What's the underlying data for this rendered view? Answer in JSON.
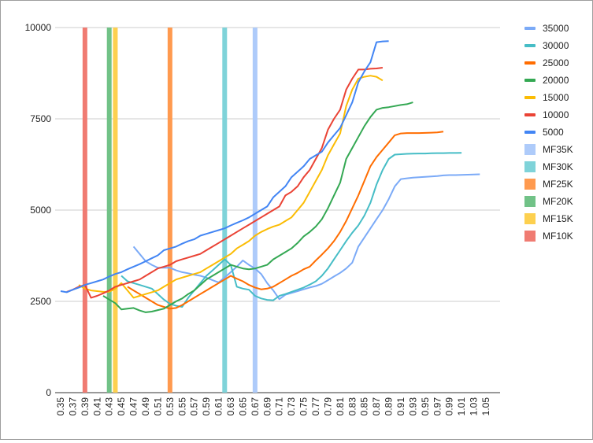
{
  "chart_data": {
    "type": "line",
    "title": "",
    "xlabel": "",
    "ylabel": "",
    "ylim": [
      0,
      10000
    ],
    "yticks": [
      0,
      2500,
      5000,
      7500,
      10000
    ],
    "x_start": 0.35,
    "x_step": 0.01,
    "x_count": 71,
    "xtick_labels": [
      "0.35",
      "0.37",
      "0.39",
      "0.41",
      "0.43",
      "0.45",
      "0.47",
      "0.49",
      "0.51",
      "0.53",
      "0.55",
      "0.57",
      "0.59",
      "0.61",
      "0.63",
      "0.65",
      "0.67",
      "0.69",
      "0.71",
      "0.73",
      "0.75",
      "0.77",
      "0.79",
      "0.81",
      "0.83",
      "0.85",
      "0.87",
      "0.89",
      "0.91",
      "0.93",
      "0.95",
      "0.97",
      "0.99",
      "1.01",
      "1.03",
      "1.05"
    ],
    "grid": true,
    "legend_position": "right",
    "series": [
      {
        "name": "35000",
        "color": "#7baaf7",
        "start": 0.47,
        "values": [
          4000,
          3800,
          3600,
          3500,
          3420,
          3420,
          3420,
          3350,
          3300,
          3270,
          3230,
          3200,
          3150,
          3080,
          3020,
          3150,
          3300,
          3450,
          3620,
          3500,
          3400,
          3250,
          3000,
          2800,
          2560,
          2680,
          2730,
          2780,
          2830,
          2880,
          2920,
          2980,
          3080,
          3180,
          3280,
          3400,
          3560,
          4000,
          4250,
          4500,
          4750,
          5000,
          5300,
          5650,
          5850,
          5870,
          5890,
          5900,
          5910,
          5920,
          5930,
          5950,
          5960,
          5960,
          5965,
          5970,
          5975,
          5980
        ]
      },
      {
        "name": "30000",
        "color": "#46bdc6",
        "start": 0.45,
        "values": [
          3200,
          3050,
          3000,
          2950,
          2900,
          2850,
          2700,
          2550,
          2430,
          2380,
          2350,
          2600,
          2800,
          3000,
          3200,
          3350,
          3500,
          3650,
          3500,
          2900,
          2850,
          2820,
          2650,
          2580,
          2540,
          2530,
          2650,
          2700,
          2760,
          2820,
          2880,
          2960,
          3050,
          3200,
          3400,
          3650,
          3900,
          4150,
          4380,
          4580,
          4850,
          5200,
          5700,
          6100,
          6400,
          6520,
          6530,
          6540,
          6545,
          6550,
          6550,
          6555,
          6560,
          6560,
          6565,
          6565,
          6570
        ]
      },
      {
        "name": "25000",
        "color": "#ff6d01",
        "start": 0.46,
        "values": [
          2900,
          2800,
          2700,
          2600,
          2500,
          2400,
          2350,
          2300,
          2320,
          2400,
          2500,
          2600,
          2700,
          2800,
          2900,
          3000,
          3100,
          3200,
          3120,
          3050,
          2950,
          2880,
          2830,
          2850,
          2900,
          3000,
          3100,
          3200,
          3280,
          3380,
          3450,
          3620,
          3780,
          3950,
          4150,
          4400,
          4700,
          5050,
          5400,
          5800,
          6200,
          6450,
          6650,
          6850,
          7050,
          7100,
          7110,
          7110,
          7110,
          7115,
          7120,
          7130,
          7150
        ]
      },
      {
        "name": "20000",
        "color": "#34a853",
        "start": 0.42,
        "values": [
          2650,
          2550,
          2450,
          2280,
          2300,
          2320,
          2250,
          2200,
          2220,
          2260,
          2300,
          2400,
          2500,
          2580,
          2700,
          2800,
          2950,
          3100,
          3200,
          3300,
          3400,
          3500,
          3450,
          3400,
          3380,
          3400,
          3450,
          3500,
          3650,
          3750,
          3850,
          3950,
          4100,
          4280,
          4400,
          4550,
          4750,
          5050,
          5400,
          5750,
          6400,
          6700,
          7000,
          7300,
          7550,
          7750,
          7800,
          7820,
          7850,
          7880,
          7900,
          7950
        ]
      },
      {
        "name": "15000",
        "color": "#fbbc04",
        "start": 0.38,
        "values": [
          2950,
          2850,
          2800,
          2780,
          2760,
          2760,
          2850,
          3000,
          2800,
          2600,
          2650,
          2700,
          2750,
          2800,
          2900,
          3000,
          3100,
          3150,
          3200,
          3250,
          3300,
          3400,
          3500,
          3600,
          3700,
          3800,
          3950,
          4050,
          4150,
          4300,
          4400,
          4480,
          4550,
          4600,
          4700,
          4800,
          5000,
          5200,
          5500,
          5800,
          6100,
          6500,
          6800,
          7100,
          7850,
          8300,
          8600,
          8650,
          8680,
          8650,
          8550
        ]
      },
      {
        "name": "10000",
        "color": "#ea4335",
        "start": 0.36,
        "values": [
          2760,
          2820,
          2900,
          2950,
          2600,
          2650,
          2720,
          2800,
          2900,
          2950,
          3000,
          3050,
          3100,
          3200,
          3300,
          3400,
          3450,
          3500,
          3600,
          3650,
          3700,
          3750,
          3800,
          3900,
          4000,
          4100,
          4200,
          4300,
          4400,
          4500,
          4600,
          4700,
          4800,
          4900,
          5000,
          5100,
          5400,
          5500,
          5650,
          5900,
          6100,
          6400,
          6700,
          7200,
          7500,
          7750,
          8300,
          8600,
          8850,
          8850,
          8870,
          8880,
          8900
        ]
      },
      {
        "name": "5000",
        "color": "#4285f4",
        "start": 0.35,
        "values": [
          2780,
          2750,
          2820,
          2880,
          2950,
          3000,
          3050,
          3100,
          3180,
          3250,
          3300,
          3380,
          3450,
          3520,
          3600,
          3680,
          3760,
          3900,
          3950,
          4000,
          4080,
          4150,
          4200,
          4300,
          4350,
          4400,
          4450,
          4500,
          4580,
          4650,
          4720,
          4800,
          4900,
          5000,
          5100,
          5350,
          5500,
          5650,
          5900,
          6050,
          6200,
          6400,
          6500,
          6600,
          6850,
          7050,
          7250,
          7600,
          7950,
          8500,
          8800,
          9050,
          9600,
          9620,
          9630
        ]
      }
    ],
    "markers": [
      {
        "name": "MF35K",
        "color": "#aecbfa",
        "x": 0.67
      },
      {
        "name": "MF30K",
        "color": "#7fd3d9",
        "x": 0.62
      },
      {
        "name": "MF25K",
        "color": "#ff9a4f",
        "x": 0.53
      },
      {
        "name": "MF20K",
        "color": "#71c287",
        "x": 0.43
      },
      {
        "name": "MF15K",
        "color": "#fdd04f",
        "x": 0.44
      },
      {
        "name": "MF10K",
        "color": "#f07b72",
        "x": 0.39
      }
    ],
    "legend": [
      {
        "label": "35000",
        "kind": "line",
        "color": "#7baaf7"
      },
      {
        "label": "30000",
        "kind": "line",
        "color": "#46bdc6"
      },
      {
        "label": "25000",
        "kind": "line",
        "color": "#ff6d01"
      },
      {
        "label": "20000",
        "kind": "line",
        "color": "#34a853"
      },
      {
        "label": "15000",
        "kind": "line",
        "color": "#fbbc04"
      },
      {
        "label": "10000",
        "kind": "line",
        "color": "#ea4335"
      },
      {
        "label": "5000",
        "kind": "line",
        "color": "#4285f4"
      },
      {
        "label": "MF35K",
        "kind": "box",
        "color": "#aecbfa"
      },
      {
        "label": "MF30K",
        "kind": "box",
        "color": "#7fd3d9"
      },
      {
        "label": "MF25K",
        "kind": "box",
        "color": "#ff9a4f"
      },
      {
        "label": "MF20K",
        "kind": "box",
        "color": "#71c287"
      },
      {
        "label": "MF15K",
        "kind": "box",
        "color": "#fdd04f"
      },
      {
        "label": "MF10K",
        "kind": "box",
        "color": "#f07b72"
      }
    ]
  }
}
